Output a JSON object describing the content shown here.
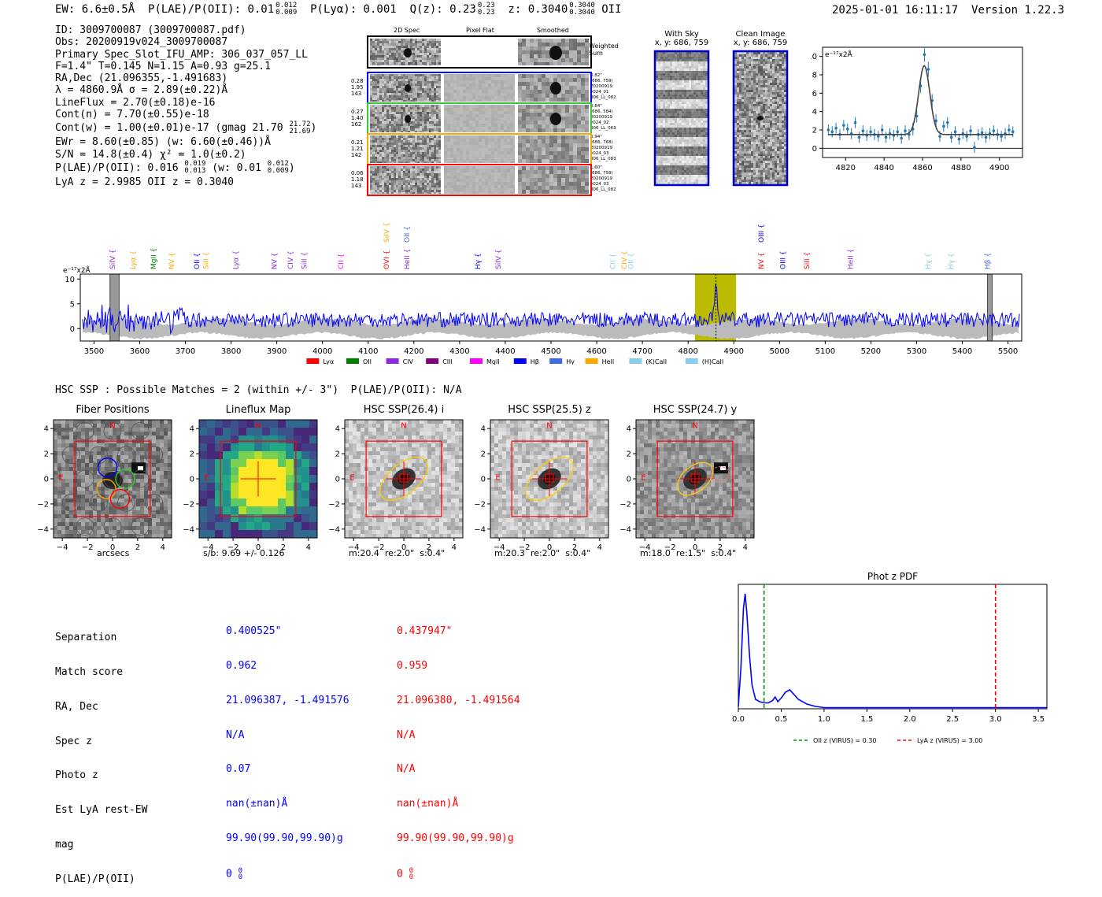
{
  "header": {
    "ew": "EW: 6.6±0.5Å",
    "plae_label": "P(LAE)/P(OII): 0.01",
    "plae_sup": "0.012",
    "plae_sub": "0.009",
    "plya": "P(Lyα): 0.001",
    "qz_label": "Q(z): 0.23",
    "qz_sup": "0.23",
    "qz_sub": "0.23",
    "z_label": "z: 0.3040",
    "z_sup": "0.3040",
    "z_sub": "0.3040",
    "z_line": "OII",
    "timestamp": "2025-01-01 16:11:17",
    "version": "Version 1.22.3"
  },
  "info": {
    "lines": [
      "ID: 3009700087 (3009700087.pdf)",
      "Obs: 20200919v024_3009700087",
      "Primary Spec_Slot_IFU_AMP: 306_037_057_LL",
      "F=1.4\"  T=0.145  N=1.15  A=0.93  g=25.1",
      "RA,Dec (21.096355,-1.491683)",
      "λ = 4860.9Å   σ = 2.89(±0.22)Å",
      "LineFlux = 2.70(±0.18)e-16",
      "Cont(n) = 7.70(±0.55)e-18"
    ],
    "contw": "Cont(w) = 1.00(±0.01)e-17 (gmag 21.70",
    "contw_sup": "21.72",
    "contw_sub": "21.69",
    "contw_end": ")",
    "ewr": "EWr = 8.60(±0.85)  (w: 6.60(±0.46))Å",
    "sn": "S/N = 14.8(±0.4)   χ² = 1.0(±0.2)",
    "plae2": "P(LAE)/P(OII): 0.016",
    "plae2_sup": "0.019",
    "plae2_sub": "0.013",
    "plae2_w": "(w: 0.01",
    "plae2_w_sup": "0.012",
    "plae2_w_sub": "0.009",
    "plae2_end": ")",
    "lyaz": "LyA z = 2.9985   OII z = 0.3040"
  },
  "spec2d": {
    "col_titles": [
      "2D Spec",
      "Pixel Flat",
      "Smoothed"
    ],
    "weighted_label": "Weighted Sum",
    "rows": [
      {
        "stats": [
          "0.28",
          "1.95",
          "143"
        ],
        "info": [
          "0.82\"",
          "(686, 759)",
          "20200919",
          "v024_01",
          "306_LL_082"
        ],
        "color": "#0000ff"
      },
      {
        "stats": [
          "0.27",
          "1.40",
          "162"
        ],
        "info": [
          "0.84\"",
          "(686, 584)",
          "20200919",
          "v024_02",
          "306_LL_063"
        ],
        "color": "#33cc33"
      },
      {
        "stats": [
          "0.21",
          "1.21",
          "142"
        ],
        "info": [
          "0.94\"",
          "(686, 768)",
          "20200919",
          "v024_03",
          "306_LL_083"
        ],
        "color": "#ffa500"
      },
      {
        "stats": [
          "0.06",
          "1.18",
          "143"
        ],
        "info": [
          "1.60\"",
          "(686, 759)",
          "20200919",
          "v024_03",
          "306_LL_082"
        ],
        "color": "#ff0000"
      }
    ]
  },
  "sky": {
    "with_sky_title": "With Sky",
    "with_sky_coords": "x, y: 686, 759",
    "clean_title": "Clean Image",
    "clean_coords": "x, y: 686, 759"
  },
  "colors": {
    "spectrum": "#0000ff",
    "err": "#bbbbbb",
    "window": "#bbbb00",
    "fit": "#444444",
    "points": "#1f77b4"
  },
  "chart_data": [
    {
      "type": "line",
      "name": "zoom_fit",
      "ylabel": "e⁻¹⁷x2Å",
      "xlim": [
        4808,
        4912
      ],
      "ylim": [
        -1,
        11
      ],
      "xticks": [
        4820,
        4840,
        4860,
        4880,
        4900
      ],
      "yticks": [
        0,
        2,
        4,
        6,
        8,
        10
      ],
      "points_x": [
        4811,
        4813,
        4815,
        4817,
        4819,
        4821,
        4823,
        4825,
        4827,
        4829,
        4831,
        4833,
        4835,
        4837,
        4839,
        4841,
        4843,
        4845,
        4847,
        4849,
        4851,
        4853,
        4855,
        4857,
        4859,
        4861,
        4863,
        4865,
        4867,
        4869,
        4871,
        4873,
        4875,
        4877,
        4879,
        4881,
        4883,
        4885,
        4887,
        4889,
        4891,
        4893,
        4895,
        4897,
        4899,
        4901,
        4903,
        4905,
        4907
      ],
      "points_y": [
        2.0,
        1.8,
        2.2,
        1.5,
        2.5,
        2.1,
        1.6,
        2.8,
        1.2,
        1.9,
        1.4,
        1.8,
        1.5,
        1.3,
        2.0,
        1.2,
        1.6,
        1.4,
        1.8,
        1.1,
        1.9,
        1.5,
        2.1,
        3.5,
        6.8,
        10.2,
        8.6,
        5.2,
        3.0,
        1.3,
        2.4,
        2.8,
        1.2,
        1.8,
        1.0,
        1.6,
        1.3,
        1.9,
        0.1,
        1.5,
        1.7,
        1.2,
        1.6,
        1.9,
        1.5,
        1.3,
        1.6,
        2.0,
        1.8
      ],
      "errors": [
        0.6,
        0.6,
        0.6,
        0.6,
        0.6,
        0.6,
        0.6,
        0.6,
        0.6,
        0.6,
        0.6,
        0.6,
        0.6,
        0.6,
        0.6,
        0.6,
        0.6,
        0.6,
        0.6,
        0.6,
        0.6,
        0.6,
        0.7,
        0.7,
        0.8,
        0.8,
        0.8,
        0.7,
        0.7,
        0.6,
        0.6,
        0.6,
        0.6,
        0.6,
        0.6,
        0.6,
        0.6,
        0.6,
        0.6,
        0.6,
        0.6,
        0.6,
        0.6,
        0.6,
        0.6,
        0.6,
        0.6,
        0.6,
        0.6
      ],
      "fit_continuum": 1.5,
      "fit_peak": 9.0,
      "fit_center": 4860.9,
      "fit_sigma": 2.89
    },
    {
      "type": "line",
      "name": "full_spectrum",
      "ylabel": "e⁻¹⁷x2Å",
      "xlim": [
        3470,
        5530
      ],
      "ylim": [
        -2.5,
        11
      ],
      "xticks": [
        3500,
        3600,
        3700,
        3800,
        3900,
        4000,
        4100,
        4200,
        4300,
        4400,
        4500,
        4600,
        4700,
        4800,
        4900,
        5000,
        5100,
        5200,
        5300,
        5400,
        5500
      ],
      "yticks": [
        0,
        5,
        10
      ],
      "highlight_window": [
        4815,
        4905
      ],
      "line_center": 4861,
      "hatched_regions": [
        [
          3535,
          3555
        ],
        [
          5455,
          5465
        ]
      ],
      "lines_top": [
        {
          "label": "SiIV",
          "x": 3541,
          "color": "#8a2be2",
          "row": 1
        },
        {
          "label": "Lyα",
          "x": 3585,
          "color": "#ffa500",
          "row": 1
        },
        {
          "label": "MgII",
          "x": 3630,
          "color": "#008000",
          "row": 1
        },
        {
          "label": "NV",
          "x": 3670,
          "color": "#ffa500",
          "row": 1
        },
        {
          "label": "OII",
          "x": 3725,
          "color": "#0000ff",
          "row": 1
        },
        {
          "label": "SiII",
          "x": 3745,
          "color": "#ffa500",
          "row": 1
        },
        {
          "label": "Lyα",
          "x": 3810,
          "color": "#8a2be2",
          "row": 1
        },
        {
          "label": "NV",
          "x": 3895,
          "color": "#8a2be2",
          "row": 1
        },
        {
          "label": "CIV",
          "x": 3930,
          "color": "#8a2be2",
          "row": 1
        },
        {
          "label": "SiII",
          "x": 3960,
          "color": "#8a2be2",
          "row": 1
        },
        {
          "label": "CII",
          "x": 4040,
          "color": "#ff00ff",
          "row": 1
        },
        {
          "label": "OVI",
          "x": 4140,
          "color": "#ff0000",
          "row": 1
        },
        {
          "label": "HeII",
          "x": 4185,
          "color": "#8a2be2",
          "row": 1
        },
        {
          "label": "Hγ",
          "x": 4340,
          "color": "#0000ff",
          "row": 1
        },
        {
          "label": "SiIV",
          "x": 4385,
          "color": "#8a2be2",
          "row": 1
        },
        {
          "label": "CII",
          "x": 4635,
          "color": "#87ceeb",
          "row": 1
        },
        {
          "label": "CIV",
          "x": 4660,
          "color": "#ffa500",
          "row": 1
        },
        {
          "label": "OII",
          "x": 4675,
          "color": "#87ceeb",
          "row": 1
        },
        {
          "label": "NV",
          "x": 4960,
          "color": "#ff0000",
          "row": 1
        },
        {
          "label": "OIII",
          "x": 5007,
          "color": "#0000ff",
          "row": 1
        },
        {
          "label": "SiII",
          "x": 5060,
          "color": "#ff0000",
          "row": 1
        },
        {
          "label": "HeII",
          "x": 5155,
          "color": "#8a2be2",
          "row": 1
        },
        {
          "label": "Hγ",
          "x": 5325,
          "color": "#87ceeb",
          "row": 1
        },
        {
          "label": "Hγ",
          "x": 5375,
          "color": "#87ceeb",
          "row": 1
        },
        {
          "label": "Hβ",
          "x": 5455,
          "color": "#4169e1",
          "row": 1
        },
        {
          "label": "SiIV",
          "x": 4140,
          "color": "#ffa500",
          "row": 2
        },
        {
          "label": "OII",
          "x": 4185,
          "color": "#4169e1",
          "row": 2
        },
        {
          "label": "OIII",
          "x": 4960,
          "color": "#0000ff",
          "row": 2
        }
      ],
      "legend": [
        {
          "label": "Lyα",
          "color": "#ff0000"
        },
        {
          "label": "OII",
          "color": "#008000"
        },
        {
          "label": "CIV",
          "color": "#8a2be2"
        },
        {
          "label": "CIII",
          "color": "#800080"
        },
        {
          "label": "MgII",
          "color": "#ff00ff"
        },
        {
          "label": "Hβ",
          "color": "#0000ff"
        },
        {
          "label": "Hγ",
          "color": "#4169e1"
        },
        {
          "label": "HeII",
          "color": "#ffa500"
        },
        {
          "label": "(K)CaII",
          "color": "#87ceeb"
        },
        {
          "label": "(H)CaII",
          "color": "#87ceeb"
        }
      ]
    },
    {
      "type": "line",
      "name": "phot_z_pdf",
      "title": "Phot z PDF",
      "xlim": [
        0.0,
        3.6
      ],
      "ylim": [
        0,
        1.05
      ],
      "xticks": [
        0.0,
        0.5,
        1.0,
        1.5,
        2.0,
        2.5,
        3.0,
        3.5
      ],
      "x": [
        0.0,
        0.03,
        0.06,
        0.08,
        0.1,
        0.13,
        0.16,
        0.2,
        0.25,
        0.3,
        0.35,
        0.4,
        0.43,
        0.46,
        0.5,
        0.55,
        0.6,
        0.65,
        0.7,
        0.8,
        0.9,
        1.0,
        1.2,
        1.5,
        2.0,
        2.5,
        3.0,
        3.6
      ],
      "y": [
        0.02,
        0.35,
        0.85,
        0.97,
        0.8,
        0.45,
        0.2,
        0.08,
        0.06,
        0.05,
        0.05,
        0.07,
        0.1,
        0.06,
        0.09,
        0.14,
        0.16,
        0.12,
        0.08,
        0.04,
        0.02,
        0.01,
        0.01,
        0.01,
        0.01,
        0.01,
        0.01,
        0.01
      ],
      "oii_z": 0.3,
      "lya_z": 3.0,
      "legend_oii": "OII z (VIRUS) = 0.30",
      "legend_lya": "LyA z (VIRUS) = 3.00"
    }
  ],
  "hsc": {
    "match_text": "HSC SSP : Possible Matches = 2 (within +/- 3\")  P(LAE)/P(OII): N/A"
  },
  "cutouts": [
    {
      "title": "Fiber Positions",
      "caption": "arcsecs"
    },
    {
      "title": "Lineflux Map",
      "caption": "s/b: 9.69 +/- 0.126"
    },
    {
      "title": "HSC SSP(26.4) i",
      "caption": "m:20.4  re:2.0\"  s:0.4\""
    },
    {
      "title": "HSC SSP(25.5) z",
      "caption": "m:20.3  re:2.0\"  s:0.4\""
    },
    {
      "title": "HSC SSP(24.7) y",
      "caption": "m:18.0  re:1.5\"  s:0.4\""
    }
  ],
  "cutout_axis": {
    "ticks": [
      "−4",
      "−2",
      "0",
      "2",
      "4"
    ],
    "n_label": "N",
    "e_label": "E"
  },
  "match_table": {
    "labels": [
      "Separation",
      "Match score",
      "RA, Dec",
      "Spec z",
      "Photo z",
      "Est LyA rest-EW",
      "mag",
      "P(LAE)/P(OII)"
    ],
    "col1": [
      "0.400525\"",
      "0.962",
      "21.096387, -1.491576",
      "N/A",
      "0.07",
      "nan(±nan)Å",
      "99.90(99.90,99.90)g",
      "0"
    ],
    "col2": [
      "0.437947\"",
      "0.959",
      "21.096380, -1.491564",
      "N/A",
      "N/A",
      "nan(±nan)Å",
      "99.90(99.90,99.90)g",
      "0"
    ],
    "sup": "0",
    "sub": "0"
  }
}
